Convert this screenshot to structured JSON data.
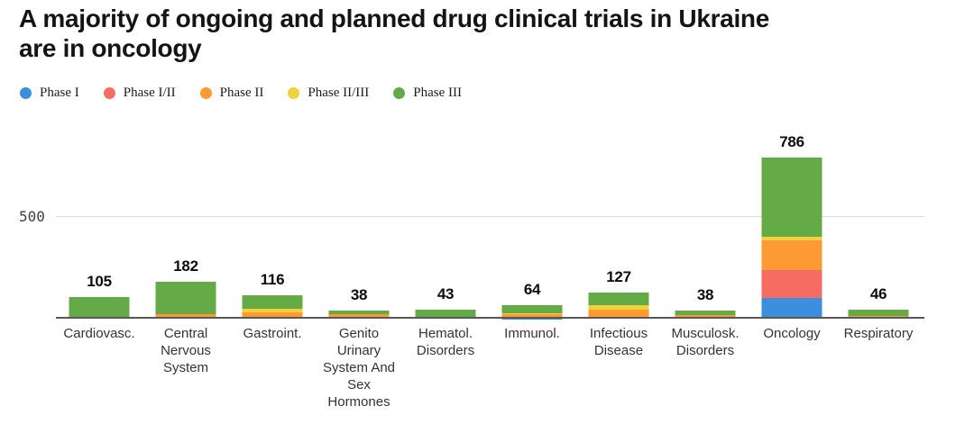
{
  "header": {
    "title_line1": "A majority of ongoing and planned drug clinical trials in Ukraine",
    "title_line2": "are in oncology"
  },
  "chart_data": {
    "type": "bar",
    "stacked": true,
    "title": "A majority of ongoing and planned drug clinical trials in Ukraine are in oncology",
    "categories": [
      "Cardiovasc.",
      "Central Nervous System",
      "Gastroint.",
      "Genito Urinary System And Sex Hormones",
      "Hematol. Disorders",
      "Immunol.",
      "Infectious Disease",
      "Musculosk. Disorders",
      "Oncology",
      "Respiratory"
    ],
    "totals": [
      105,
      182,
      116,
      38,
      43,
      64,
      127,
      38,
      786,
      46
    ],
    "series": [
      {
        "name": "Phase I",
        "color": "#3e8ede",
        "values": [
          0,
          0,
          0,
          0,
          0,
          2,
          3,
          0,
          100,
          0
        ]
      },
      {
        "name": "Phase I/II",
        "color": "#f76c62",
        "values": [
          0,
          0,
          0,
          0,
          0,
          2,
          4,
          0,
          136,
          0
        ]
      },
      {
        "name": "Phase II",
        "color": "#fd9a33",
        "values": [
          10,
          20,
          32,
          20,
          3,
          16,
          35,
          16,
          147,
          12
        ]
      },
      {
        "name": "Phase II/III",
        "color": "#efd23d",
        "values": [
          0,
          0,
          16,
          0,
          0,
          8,
          23,
          0,
          18,
          0
        ]
      },
      {
        "name": "Phase III",
        "color": "#64ab48",
        "values": [
          95,
          162,
          68,
          18,
          40,
          36,
          62,
          22,
          385,
          34
        ]
      }
    ],
    "ytick_label": "500",
    "ylim": [
      0,
      990
    ],
    "grid_values": [
      500
    ],
    "legend_position": "top-left",
    "xlabel": "",
    "ylabel": ""
  }
}
